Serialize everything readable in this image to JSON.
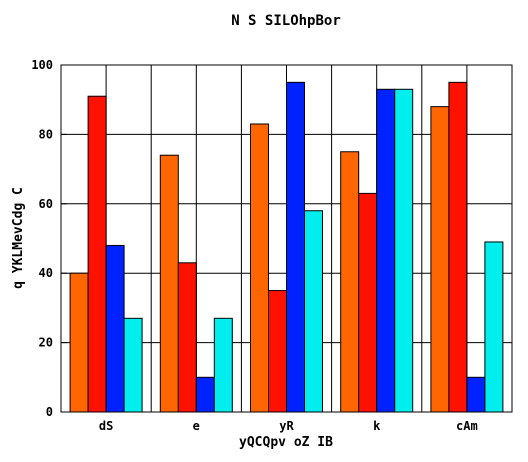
{
  "chart_data": {
    "type": "bar",
    "title": "N  S SILOhpBor",
    "xlabel": "yQCQpv oZ IB",
    "ylabel": "q YKLMevCdg C",
    "categories": [
      "dS",
      "e",
      "yR",
      "k",
      "cAm"
    ],
    "series": [
      {
        "color": "#ff6600",
        "values": [
          40,
          74,
          83,
          75,
          88
        ]
      },
      {
        "color": "#ff1100",
        "values": [
          91,
          43,
          35,
          63,
          95
        ]
      },
      {
        "color": "#0022ff",
        "values": [
          48,
          10,
          95,
          93,
          10
        ]
      },
      {
        "color": "#00eeee",
        "values": [
          27,
          27,
          58,
          93,
          49
        ]
      }
    ],
    "ylim": [
      0,
      100
    ],
    "yticks": [
      0,
      20,
      40,
      60,
      80,
      100
    ],
    "grid": true
  }
}
